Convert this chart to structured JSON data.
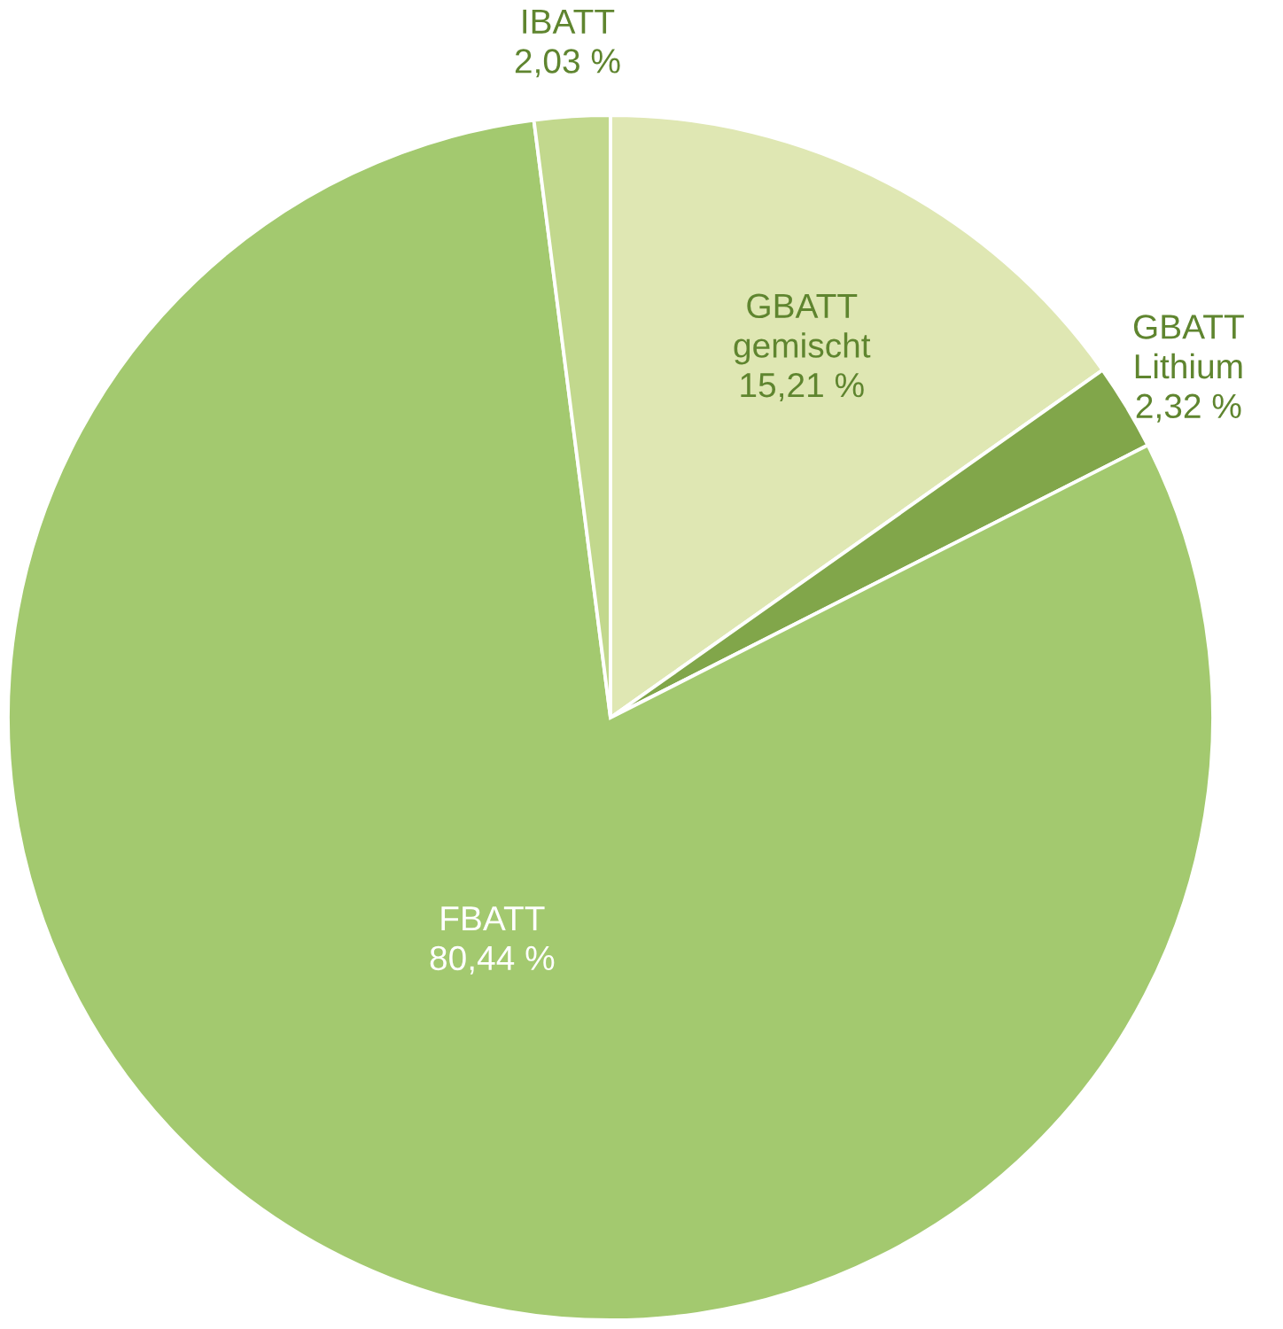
{
  "chart_data": {
    "type": "pie",
    "categories": [
      "GBATT gemischt",
      "GBATT Lithium",
      "FBATT",
      "IBATT"
    ],
    "values": [
      15.21,
      2.32,
      80.44,
      2.03
    ],
    "colors": [
      "#dfe7b3",
      "#81a64a",
      "#a3c96f",
      "#c2d88d"
    ],
    "value_labels": [
      "15,21 %",
      "2,32 %",
      "80,44 %",
      "2,03 %"
    ]
  }
}
